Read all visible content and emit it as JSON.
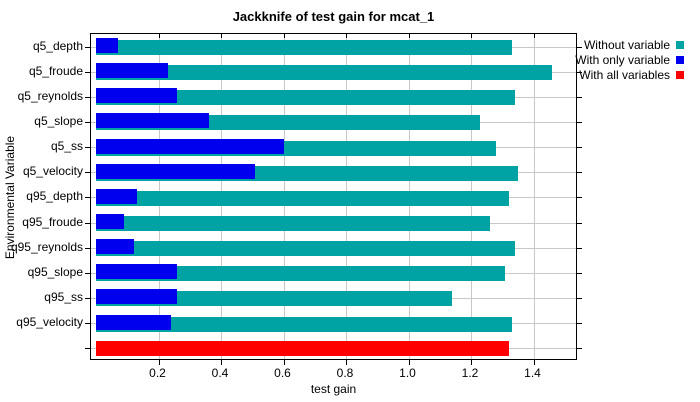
{
  "title": "Jackknife of test gain for mcat_1",
  "x_axis": {
    "label": "test gain",
    "tick_labels": [
      "0.2",
      "0.4",
      "0.6",
      "0.8",
      "1.0",
      "1.2",
      "1.4"
    ]
  },
  "y_axis": {
    "label": "Environmental Variable"
  },
  "legend": {
    "items": [
      {
        "label": "Without variable",
        "color": "#00a3a3"
      },
      {
        "label": "With only variable",
        "color": "#0000ee"
      },
      {
        "label": "With all variables",
        "color": "#ff0000"
      }
    ]
  },
  "colors": {
    "without_variable": "#00a3a3",
    "with_only_variable": "#0000ee",
    "with_all_variables": "#ff0000",
    "gridline": "#c8c8c8",
    "plot_border": "#000000"
  },
  "chart_data": {
    "type": "bar",
    "orientation": "horizontal",
    "title": "Jackknife of test gain for mcat_1",
    "xlabel": "test gain",
    "ylabel": "Environmental Variable",
    "categories": [
      "q5_depth",
      "q5_froude",
      "q5_reynolds",
      "q5_slope",
      "q5_ss",
      "q5_velocity",
      "q95_depth",
      "q95_froude",
      "q95_reynolds",
      "q95_slope",
      "q95_ss",
      "q95_velocity"
    ],
    "series": [
      {
        "name": "Without variable",
        "color": "#00a3a3",
        "values": [
          1.33,
          1.46,
          1.34,
          1.23,
          1.28,
          1.35,
          1.32,
          1.26,
          1.34,
          1.31,
          1.14,
          1.33
        ]
      },
      {
        "name": "With only variable",
        "color": "#0000ee",
        "values": [
          0.07,
          0.23,
          0.26,
          0.36,
          0.6,
          0.51,
          0.13,
          0.09,
          0.12,
          0.26,
          0.26,
          0.24
        ]
      },
      {
        "name": "With all variables",
        "color": "#ff0000",
        "values": [
          1.32
        ]
      }
    ],
    "xticks": [
      0.2,
      0.4,
      0.6,
      0.8,
      1.0,
      1.2,
      1.4
    ],
    "xlim": [
      -0.016,
      1.542
    ],
    "grid": true,
    "gridline_color": "#c8c8c8",
    "legend_position": "right"
  }
}
